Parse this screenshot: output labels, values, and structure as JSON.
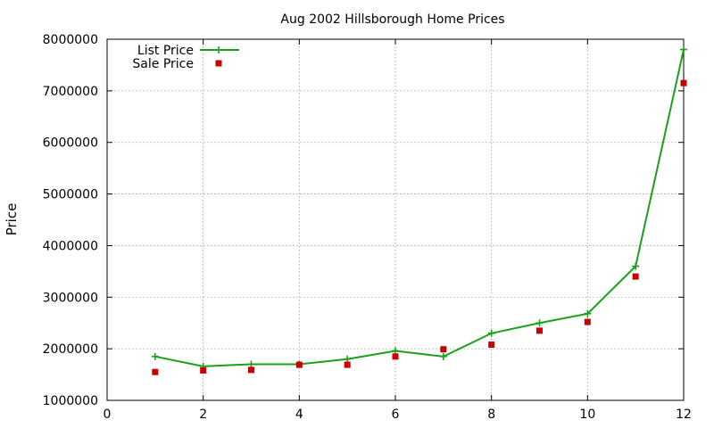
{
  "chart_data": {
    "type": "line",
    "title": "Aug 2002 Hillsborough Home Prices",
    "xlabel": "",
    "ylabel": "Price",
    "xlim": [
      0,
      12
    ],
    "ylim": [
      1000000,
      8000000
    ],
    "x_ticks": [
      0,
      2,
      4,
      6,
      8,
      10,
      12
    ],
    "y_ticks": [
      1000000,
      2000000,
      3000000,
      4000000,
      5000000,
      6000000,
      7000000,
      8000000
    ],
    "x_tick_labels": [
      "0",
      "2",
      "4",
      "6",
      "8",
      "10",
      "12"
    ],
    "y_tick_labels": [
      "1000000",
      "2000000",
      "3000000",
      "4000000",
      "5000000",
      "6000000",
      "7000000",
      "8000000"
    ],
    "grid": true,
    "legend_position": "top-left",
    "series": [
      {
        "name": "List Price",
        "style": "linespoints",
        "marker": "plus",
        "color": "#1aa01a",
        "x": [
          1,
          2,
          3,
          4,
          5,
          6,
          7,
          8,
          9,
          10,
          11,
          12
        ],
        "values": [
          1850000,
          1660000,
          1700000,
          1700000,
          1800000,
          1960000,
          1850000,
          2300000,
          2500000,
          2680000,
          3600000,
          7800000
        ]
      },
      {
        "name": "Sale Price",
        "style": "points",
        "marker": "square",
        "color": "#c80000",
        "x": [
          1,
          2,
          3,
          4,
          5,
          6,
          7,
          8,
          9,
          10,
          11,
          12
        ],
        "values": [
          1550000,
          1580000,
          1590000,
          1690000,
          1690000,
          1850000,
          1990000,
          2080000,
          2350000,
          2520000,
          3400000,
          7150000
        ]
      }
    ]
  }
}
